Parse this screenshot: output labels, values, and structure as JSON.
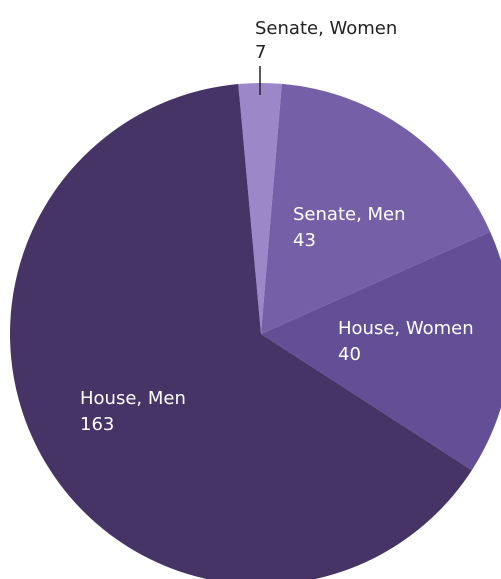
{
  "chart_data": {
    "type": "pie",
    "categories": [
      "Senate, Women",
      "Senate, Men",
      "House, Women",
      "House, Men"
    ],
    "values": [
      7,
      43,
      40,
      163
    ],
    "colors": [
      "#9c88c8",
      "#7560a8",
      "#634f95",
      "#463466"
    ]
  }
}
